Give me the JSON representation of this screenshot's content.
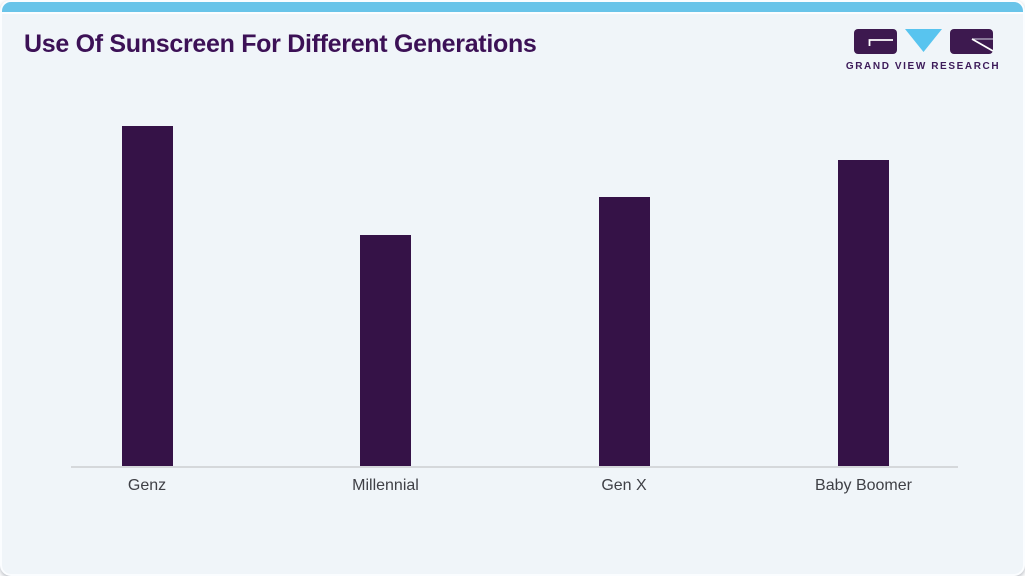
{
  "header": {
    "title": "Use Of Sunscreen For Different Generations"
  },
  "logo": {
    "brand_text": "GRAND VIEW RESEARCH",
    "icon_parts": [
      "g-block-icon",
      "v-triangle-icon",
      "r-block-icon"
    ]
  },
  "colors": {
    "card_background": "#f0f5f9",
    "accent_bar": "#69c4e9",
    "title_text": "#3c1156",
    "bar_fill": "#351247",
    "axis_line": "#d5d8db",
    "label_text": "#3f4046",
    "logo_purple": "#3d194f",
    "logo_blue": "#58c4ef"
  },
  "chart_data": {
    "type": "bar",
    "title": "Use Of Sunscreen For Different Generations",
    "categories": [
      "Genz",
      "Millennial",
      "Gen X",
      "Baby Boomer"
    ],
    "values_relative": [
      100,
      68,
      79,
      90
    ],
    "value_labels_shown": false,
    "xlabel": "",
    "ylabel": "",
    "y_axis_ticks": "none (unlabeled axis)",
    "grid": false,
    "legend": false,
    "bar_color": "#351247"
  }
}
